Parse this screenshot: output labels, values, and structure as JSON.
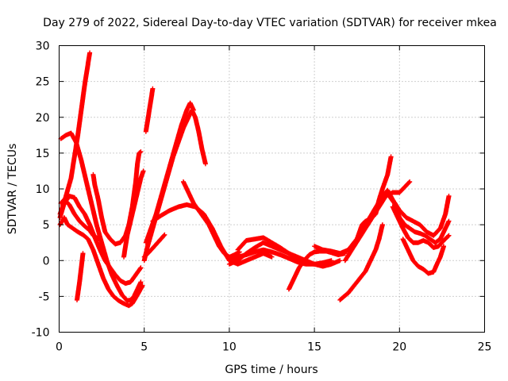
{
  "chart_data": {
    "type": "scatter",
    "title": "Day 279 of 2022, Sidereal Day-to-day VTEC variation (SDTVAR) for receiver mkea",
    "xlabel": "GPS time / hours",
    "ylabel": "SDTVAR / TECUs",
    "xlim": [
      0,
      25
    ],
    "ylim": [
      -10,
      30
    ],
    "xticks": [
      0,
      5,
      10,
      15,
      20,
      25
    ],
    "yticks": [
      -10,
      -5,
      0,
      5,
      10,
      15,
      20,
      25,
      30
    ],
    "xtick_labels": [
      "0",
      "5",
      "10",
      "15",
      "20",
      "25"
    ],
    "ytick_labels": [
      "-10",
      "-5",
      "0",
      "5",
      "10",
      "15",
      "20",
      "25",
      "30"
    ],
    "grid": true,
    "marker": "+",
    "color": "#ff0000",
    "series": [
      {
        "name": "arc-01",
        "points": [
          [
            0.05,
            6.5
          ],
          [
            0.2,
            7.5
          ],
          [
            0.4,
            9
          ],
          [
            0.7,
            11.5
          ],
          [
            0.9,
            14.5
          ],
          [
            1.1,
            17.5
          ],
          [
            1.3,
            21
          ],
          [
            1.5,
            24.5
          ],
          [
            1.7,
            27.5
          ],
          [
            1.8,
            29
          ]
        ]
      },
      {
        "name": "arc-02",
        "points": [
          [
            0.1,
            17
          ],
          [
            0.4,
            17.5
          ],
          [
            0.7,
            17.8
          ],
          [
            1.0,
            16.5
          ],
          [
            1.3,
            14
          ],
          [
            1.6,
            11
          ],
          [
            1.9,
            8
          ],
          [
            2.2,
            5
          ],
          [
            2.5,
            2.5
          ],
          [
            2.8,
            0
          ],
          [
            3.1,
            -2
          ],
          [
            3.4,
            -3.5
          ],
          [
            3.7,
            -4.8
          ],
          [
            4.0,
            -5.6
          ],
          [
            4.2,
            -5.5
          ],
          [
            4.4,
            -5
          ],
          [
            4.6,
            -4
          ],
          [
            4.8,
            -3
          ]
        ]
      },
      {
        "name": "arc-03",
        "points": [
          [
            0.05,
            5
          ],
          [
            0.3,
            6
          ],
          [
            0.5,
            5
          ],
          [
            0.8,
            4.5
          ],
          [
            1.1,
            4
          ],
          [
            1.4,
            3.6
          ],
          [
            1.7,
            3
          ],
          [
            2.0,
            1.5
          ],
          [
            2.3,
            -0.5
          ],
          [
            2.6,
            -2.5
          ],
          [
            2.9,
            -4
          ],
          [
            3.2,
            -5
          ],
          [
            3.5,
            -5.6
          ],
          [
            3.8,
            -6
          ],
          [
            4.1,
            -6.3
          ],
          [
            4.3,
            -6
          ],
          [
            4.6,
            -4.8
          ],
          [
            4.9,
            -3.5
          ]
        ]
      },
      {
        "name": "arc-04",
        "points": [
          [
            0.05,
            6
          ],
          [
            0.3,
            8
          ],
          [
            0.6,
            9
          ],
          [
            0.9,
            8.8
          ],
          [
            1.2,
            7.5
          ],
          [
            1.5,
            6.5
          ],
          [
            1.8,
            5
          ],
          [
            2.1,
            3.2
          ],
          [
            2.4,
            1.5
          ],
          [
            2.7,
            0
          ],
          [
            3.0,
            -1
          ],
          [
            3.3,
            -2
          ],
          [
            3.6,
            -2.8
          ],
          [
            3.9,
            -3.2
          ],
          [
            4.2,
            -3
          ],
          [
            4.5,
            -2
          ],
          [
            4.8,
            -1
          ]
        ]
      },
      {
        "name": "arc-05",
        "points": [
          [
            0.1,
            8
          ],
          [
            0.3,
            8.5
          ],
          [
            0.6,
            7.8
          ],
          [
            0.9,
            6.5
          ],
          [
            1.2,
            5.5
          ],
          [
            1.5,
            4.8
          ],
          [
            1.8,
            4.2
          ],
          [
            2.0,
            3.5
          ],
          [
            2.2,
            3.2
          ],
          [
            2.4,
            3
          ]
        ]
      },
      {
        "name": "arc-06",
        "points": [
          [
            1.05,
            -5.5
          ],
          [
            1.2,
            -3
          ],
          [
            1.4,
            1
          ]
        ]
      },
      {
        "name": "arc-07",
        "points": [
          [
            2.0,
            12
          ],
          [
            2.1,
            10.5
          ],
          [
            2.3,
            8.5
          ],
          [
            2.5,
            6
          ],
          [
            2.7,
            4
          ],
          [
            3.0,
            3
          ],
          [
            3.3,
            2.3
          ],
          [
            3.6,
            2.5
          ],
          [
            3.9,
            3.5
          ],
          [
            4.1,
            5
          ],
          [
            4.3,
            7.5
          ],
          [
            4.5,
            11
          ],
          [
            4.6,
            13.5
          ],
          [
            4.7,
            15
          ],
          [
            4.8,
            15.2
          ]
        ]
      },
      {
        "name": "arc-08",
        "points": [
          [
            3.8,
            0.5
          ],
          [
            3.9,
            2
          ],
          [
            4.0,
            3.5
          ],
          [
            4.2,
            5.5
          ],
          [
            4.4,
            7.5
          ],
          [
            4.6,
            9.5
          ],
          [
            4.8,
            11.5
          ],
          [
            4.95,
            12.5
          ]
        ]
      },
      {
        "name": "arc-09",
        "points": [
          [
            5.1,
            18
          ],
          [
            5.2,
            19.5
          ],
          [
            5.3,
            21
          ],
          [
            5.4,
            22.5
          ],
          [
            5.5,
            24
          ]
        ]
      },
      {
        "name": "arc-10",
        "points": [
          [
            5.0,
            0
          ],
          [
            5.2,
            2
          ],
          [
            5.5,
            4.5
          ],
          [
            5.8,
            7
          ],
          [
            6.1,
            9.5
          ],
          [
            6.4,
            12
          ],
          [
            6.7,
            14.5
          ],
          [
            7.0,
            16.5
          ],
          [
            7.3,
            18.5
          ],
          [
            7.6,
            20
          ],
          [
            7.8,
            21
          ],
          [
            8.0,
            20
          ],
          [
            8.2,
            18
          ],
          [
            8.4,
            15.5
          ],
          [
            8.6,
            13.5
          ]
        ]
      },
      {
        "name": "arc-11",
        "points": [
          [
            5.1,
            2.5
          ],
          [
            5.4,
            4.5
          ],
          [
            5.7,
            6.5
          ],
          [
            6.0,
            9
          ],
          [
            6.3,
            11.5
          ],
          [
            6.6,
            14
          ],
          [
            6.9,
            16.5
          ],
          [
            7.2,
            19
          ],
          [
            7.5,
            21
          ],
          [
            7.7,
            22
          ],
          [
            7.9,
            21
          ]
        ]
      },
      {
        "name": "arc-12",
        "points": [
          [
            5.0,
            0.5
          ],
          [
            5.3,
            1.2
          ],
          [
            5.6,
            2
          ],
          [
            5.9,
            2.8
          ],
          [
            6.2,
            3.6
          ]
        ]
      },
      {
        "name": "arc-13",
        "points": [
          [
            5.5,
            5.5
          ],
          [
            6.0,
            6.3
          ],
          [
            6.5,
            7
          ],
          [
            7.0,
            7.5
          ],
          [
            7.5,
            7.8
          ],
          [
            8.0,
            7.5
          ],
          [
            8.5,
            6.5
          ],
          [
            9.0,
            4.5
          ],
          [
            9.5,
            2
          ],
          [
            10.0,
            0
          ],
          [
            10.5,
            -0.5
          ],
          [
            11.0,
            0
          ],
          [
            11.5,
            0.5
          ],
          [
            12.0,
            1
          ],
          [
            12.5,
            0.5
          ]
        ]
      },
      {
        "name": "arc-14",
        "points": [
          [
            7.3,
            11
          ],
          [
            7.6,
            9.5
          ],
          [
            7.9,
            8
          ],
          [
            8.2,
            7
          ],
          [
            8.5,
            6
          ],
          [
            8.8,
            5
          ],
          [
            9.1,
            3.5
          ],
          [
            9.4,
            2
          ],
          [
            9.7,
            1
          ],
          [
            10.0,
            0.5
          ],
          [
            10.3,
            0.8
          ],
          [
            10.6,
            1.2
          ]
        ]
      },
      {
        "name": "arc-15",
        "points": [
          [
            10.0,
            -0.5
          ],
          [
            10.5,
            0
          ],
          [
            11.0,
            1
          ],
          [
            11.5,
            1.8
          ],
          [
            12.0,
            2.5
          ],
          [
            12.5,
            2
          ],
          [
            13.0,
            1.5
          ],
          [
            13.5,
            1
          ],
          [
            14.0,
            0.5
          ],
          [
            14.5,
            0
          ],
          [
            15.0,
            -0.5
          ],
          [
            15.5,
            -0.8
          ],
          [
            16.0,
            -0.5
          ],
          [
            16.5,
            0
          ]
        ]
      },
      {
        "name": "arc-16",
        "points": [
          [
            10.5,
            1.5
          ],
          [
            11.0,
            2.8
          ],
          [
            11.5,
            3
          ],
          [
            12.0,
            3.2
          ],
          [
            12.5,
            2.5
          ],
          [
            13.0,
            1.8
          ],
          [
            13.5,
            1
          ],
          [
            14.0,
            0.3
          ],
          [
            14.5,
            -0.3
          ],
          [
            15.0,
            -0.5
          ]
        ]
      },
      {
        "name": "arc-17",
        "points": [
          [
            10.0,
            0
          ],
          [
            10.5,
            0.5
          ],
          [
            11.0,
            0.8
          ],
          [
            11.5,
            1.2
          ],
          [
            12.0,
            1.5
          ],
          [
            12.5,
            1.2
          ],
          [
            13.0,
            0.8
          ],
          [
            13.5,
            0.3
          ],
          [
            14.0,
            -0.2
          ],
          [
            14.5,
            -0.5
          ],
          [
            15.0,
            -0.5
          ],
          [
            15.5,
            -0.3
          ],
          [
            16.0,
            0
          ]
        ]
      },
      {
        "name": "arc-18",
        "points": [
          [
            13.5,
            -4
          ],
          [
            13.8,
            -2.5
          ],
          [
            14.1,
            -1
          ],
          [
            14.4,
            0
          ],
          [
            14.7,
            0.8
          ],
          [
            15.0,
            1.2
          ],
          [
            15.3,
            1.3
          ],
          [
            15.7,
            1.3
          ],
          [
            16.0,
            1.1
          ],
          [
            16.4,
            0.8
          ],
          [
            16.8,
            1
          ]
        ]
      },
      {
        "name": "arc-19",
        "points": [
          [
            15.0,
            2
          ],
          [
            15.5,
            1.5
          ],
          [
            16.0,
            1.3
          ],
          [
            16.5,
            1
          ],
          [
            17.0,
            1.5
          ],
          [
            17.5,
            3
          ],
          [
            17.8,
            5
          ],
          [
            18.0,
            5.5
          ],
          [
            18.3,
            5.8
          ],
          [
            18.6,
            6.5
          ],
          [
            18.8,
            8.5
          ],
          [
            19.0,
            10
          ],
          [
            19.3,
            12
          ],
          [
            19.5,
            14.5
          ]
        ]
      },
      {
        "name": "arc-20",
        "points": [
          [
            16.5,
            -5.5
          ],
          [
            17.0,
            -4.5
          ],
          [
            17.5,
            -3
          ],
          [
            18.0,
            -1.5
          ],
          [
            18.3,
            0
          ],
          [
            18.6,
            1.5
          ],
          [
            18.8,
            3
          ],
          [
            19.0,
            5
          ]
        ]
      },
      {
        "name": "arc-21",
        "points": [
          [
            16.8,
            0
          ],
          [
            17.2,
            1.5
          ],
          [
            17.6,
            3
          ],
          [
            18.0,
            4.5
          ],
          [
            18.4,
            6
          ],
          [
            18.8,
            7.5
          ],
          [
            19.2,
            9
          ],
          [
            19.6,
            9.5
          ],
          [
            20.0,
            9.5
          ],
          [
            20.4,
            10.5
          ],
          [
            20.6,
            11
          ]
        ]
      },
      {
        "name": "arc-22",
        "points": [
          [
            17.0,
            1.5
          ],
          [
            17.5,
            3
          ],
          [
            18.0,
            5
          ],
          [
            18.5,
            7
          ],
          [
            19.0,
            9
          ],
          [
            19.3,
            9.8
          ],
          [
            19.6,
            8.5
          ],
          [
            20.0,
            7
          ],
          [
            20.4,
            6
          ],
          [
            20.8,
            5.5
          ],
          [
            21.2,
            5
          ],
          [
            21.6,
            4
          ],
          [
            22.0,
            3.5
          ],
          [
            22.4,
            4.5
          ],
          [
            22.7,
            6.5
          ],
          [
            22.9,
            9
          ]
        ]
      },
      {
        "name": "arc-23",
        "points": [
          [
            19.4,
            9
          ],
          [
            19.7,
            8
          ],
          [
            20.0,
            6
          ],
          [
            20.3,
            5
          ],
          [
            20.6,
            4.5
          ],
          [
            20.9,
            4
          ],
          [
            21.2,
            3.8
          ],
          [
            21.5,
            3.5
          ],
          [
            21.8,
            3
          ],
          [
            22.1,
            2.5
          ],
          [
            22.4,
            3
          ],
          [
            22.7,
            4.5
          ],
          [
            22.9,
            5.5
          ]
        ]
      },
      {
        "name": "arc-24",
        "points": [
          [
            19.6,
            7.5
          ],
          [
            19.9,
            6
          ],
          [
            20.2,
            4.5
          ],
          [
            20.5,
            3.2
          ],
          [
            20.8,
            2.5
          ],
          [
            21.1,
            2.5
          ],
          [
            21.4,
            2.8
          ],
          [
            21.7,
            2.5
          ],
          [
            22.0,
            1.8
          ],
          [
            22.3,
            2
          ],
          [
            22.6,
            2.8
          ],
          [
            22.9,
            3.5
          ]
        ]
      },
      {
        "name": "arc-25",
        "points": [
          [
            20.2,
            3
          ],
          [
            20.5,
            1.5
          ],
          [
            20.8,
            0
          ],
          [
            21.1,
            -0.8
          ],
          [
            21.4,
            -1.2
          ],
          [
            21.7,
            -1.8
          ],
          [
            22.0,
            -1.6
          ],
          [
            22.2,
            -0.5
          ],
          [
            22.4,
            0.5
          ],
          [
            22.6,
            2
          ]
        ]
      }
    ]
  }
}
